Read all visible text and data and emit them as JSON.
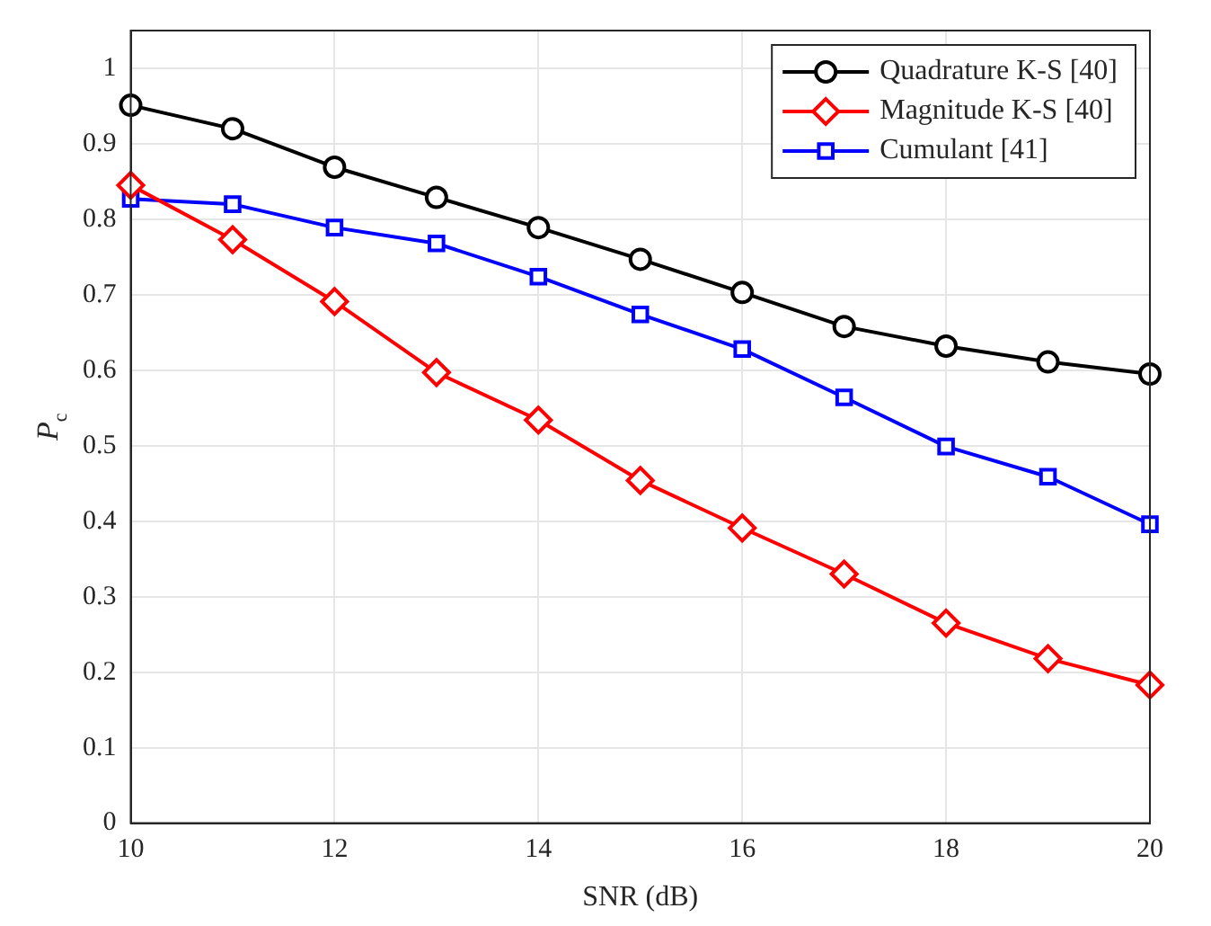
{
  "chart_data": {
    "type": "line",
    "xlabel": "SNR (dB)",
    "ylabel": "P$_{c}$",
    "x": [
      10,
      11,
      12,
      13,
      14,
      15,
      16,
      17,
      18,
      19,
      20
    ],
    "series": [
      {
        "name": "Quadrature K-S [40]",
        "color": "#000000",
        "marker": "circle",
        "values": [
          0.951,
          0.92,
          0.869,
          0.829,
          0.789,
          0.747,
          0.703,
          0.658,
          0.632,
          0.611,
          0.595
        ]
      },
      {
        "name": "Magnitude K-S [40]",
        "color": "#ff0000",
        "marker": "diamond",
        "values": [
          0.845,
          0.773,
          0.691,
          0.597,
          0.534,
          0.454,
          0.391,
          0.33,
          0.265,
          0.218,
          0.183
        ]
      },
      {
        "name": "Cumulant [41]",
        "color": "#0000ff",
        "marker": "square",
        "values": [
          0.827,
          0.82,
          0.789,
          0.768,
          0.724,
          0.674,
          0.628,
          0.564,
          0.499,
          0.459,
          0.396
        ]
      }
    ],
    "xlim": [
      10,
      20
    ],
    "xticks": [
      10,
      12,
      14,
      16,
      18,
      20
    ],
    "ylim": [
      0,
      1.05
    ],
    "yticks": [
      0,
      0.1,
      0.2,
      0.3,
      0.4,
      0.5,
      0.6,
      0.7,
      0.8,
      0.9,
      1
    ],
    "grid": true,
    "legend": "top right",
    "line_style": "solid"
  }
}
